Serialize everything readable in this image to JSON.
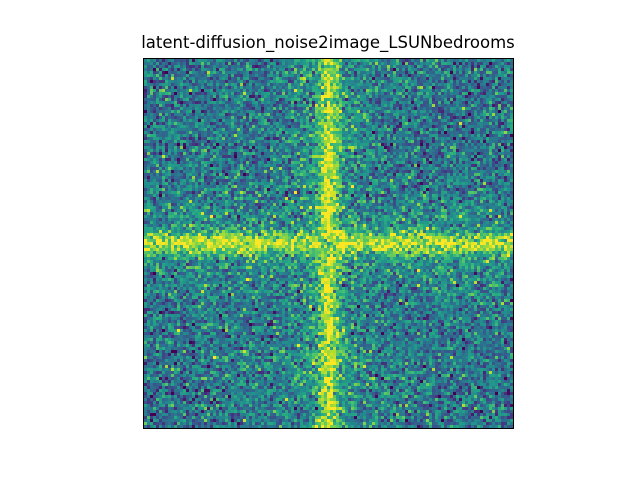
{
  "chart_data": {
    "type": "heatmap",
    "title": "latent-diffusion_noise2image_LSUNbedrooms",
    "xlabel": "",
    "ylabel": "",
    "colormap": "viridis",
    "axes_ticks_shown": false,
    "grid": false,
    "legend": "none",
    "pattern": "2D Fourier magnitude spectrum: bright horizontal and vertical bands through center, dark spot at center, noisy speckle elsewhere",
    "colors": {
      "low": "#440154",
      "mid": "#21918c",
      "high": "#fde725"
    }
  }
}
